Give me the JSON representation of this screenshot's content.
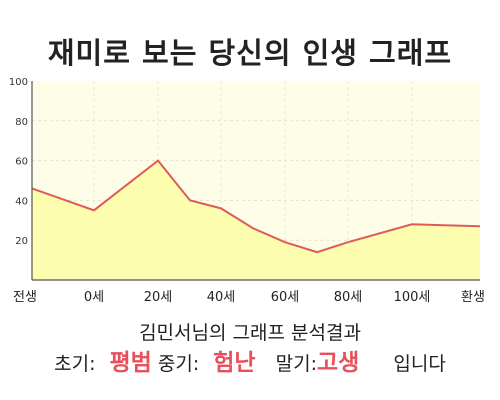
{
  "title": "재미로 보는 당신의 인생 그래프",
  "subtitle": "김민서님의 그래프 분석결과",
  "result": {
    "early_label": "초기:",
    "early_value": "평범",
    "middle_label": "중기:",
    "middle_value": "험난",
    "late_label": "말기:",
    "late_value": "고생",
    "suffix": "입니다"
  },
  "colors": {
    "plot_bg": "#fefee8",
    "fill": "#fdfdb0",
    "line": "#e05a5a",
    "highlight": "#e8505b"
  },
  "chart_data": {
    "type": "area",
    "x_labels": [
      "전생",
      "0세",
      "20세",
      "40세",
      "60세",
      "80세",
      "100세",
      "환생"
    ],
    "y_ticks": [
      "100",
      "80",
      "60",
      "40",
      "20"
    ],
    "ylim": [
      0,
      100
    ],
    "grid": true,
    "points": [
      {
        "x": "전생",
        "y": 46
      },
      {
        "x": "0세",
        "y": 35
      },
      {
        "x": "20세",
        "y": 60
      },
      {
        "x": "30세",
        "y": 40
      },
      {
        "x": "40세",
        "y": 36
      },
      {
        "x": "50세",
        "y": 26
      },
      {
        "x": "60세",
        "y": 19
      },
      {
        "x": "70세",
        "y": 14
      },
      {
        "x": "80세",
        "y": 19
      },
      {
        "x": "100세",
        "y": 28
      },
      {
        "x": "110세",
        "y": 27.5
      },
      {
        "x": "환생",
        "y": 27
      }
    ]
  }
}
